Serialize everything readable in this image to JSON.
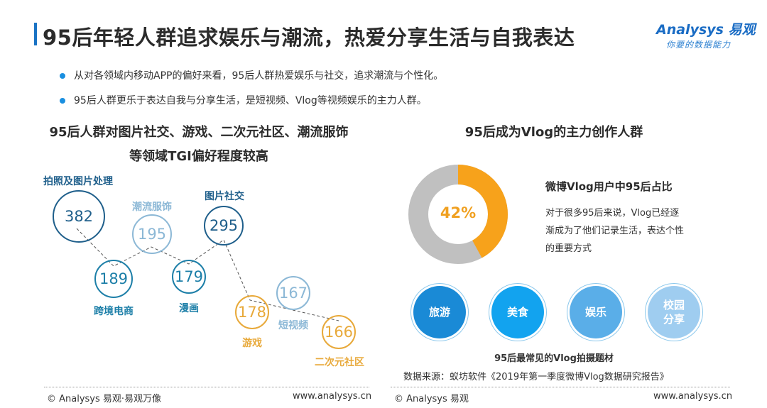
{
  "title": "95后年轻人群追求娱乐与潮流，热爱分享生活与自我表达",
  "logo": {
    "brand": "Analysys 易观",
    "slogan": "你要的数据能力"
  },
  "bullets": [
    "从对各领域内移动APP的偏好来看，95后人群热爱娱乐与社交，追求潮流与个性化。",
    "95后人群更乐于表达自我与分享生活，是短视频、Vlog等视频娱乐的主力人群。"
  ],
  "left": {
    "title_line1": "95后人群对图片社交、游戏、二次元社区、潮流服饰",
    "title_line2": "等领域TGI偏好程度较高",
    "items": [
      {
        "label": "拍照及图片处理",
        "value": "382",
        "color": "#1f5f8b"
      },
      {
        "label": "跨境电商",
        "value": "189",
        "color": "#1d7fa8"
      },
      {
        "label": "潮流服饰",
        "value": "195",
        "color": "#8cb8d6"
      },
      {
        "label": "漫画",
        "value": "179",
        "color": "#1d7fa8"
      },
      {
        "label": "图片社交",
        "value": "295",
        "color": "#1f5f8b"
      },
      {
        "label": "游戏",
        "value": "178",
        "color": "#e8a93a"
      },
      {
        "label": "短视频",
        "value": "167",
        "color": "#8cb8d6"
      },
      {
        "label": "二次元社区",
        "value": "166",
        "color": "#e8a93a"
      }
    ]
  },
  "right": {
    "title": "95后成为Vlog的主力创作人群",
    "donut": {
      "value": 42,
      "label": "42%",
      "colors": {
        "share": "#f7a21b",
        "rest": "#c0c0c0"
      }
    },
    "donut_title": "微博Vlog用户中95后占比",
    "donut_desc": "对于很多95后来说，Vlog已经逐渐成为了他们记录生活，表达个性的重要方式",
    "topics": [
      {
        "label": "旅游",
        "color": "#1a8ad6"
      },
      {
        "label": "美食",
        "color": "#12a3ef"
      },
      {
        "label": "娱乐",
        "color": "#5aaee8"
      },
      {
        "label": "校园分享",
        "color": "#9fcdf0"
      }
    ],
    "topics_caption": "95后最常见的Vlog拍摄题材",
    "source": "数据来源：蚁坊软件《2019年第一季度微博Vlog数据研究报告》"
  },
  "footer": {
    "left_copyright": "© Analysys 易观·易观万像",
    "left_url": "www.analysys.cn",
    "right_copyright": "© Analysys 易观",
    "right_url": "www.analysys.cn"
  }
}
